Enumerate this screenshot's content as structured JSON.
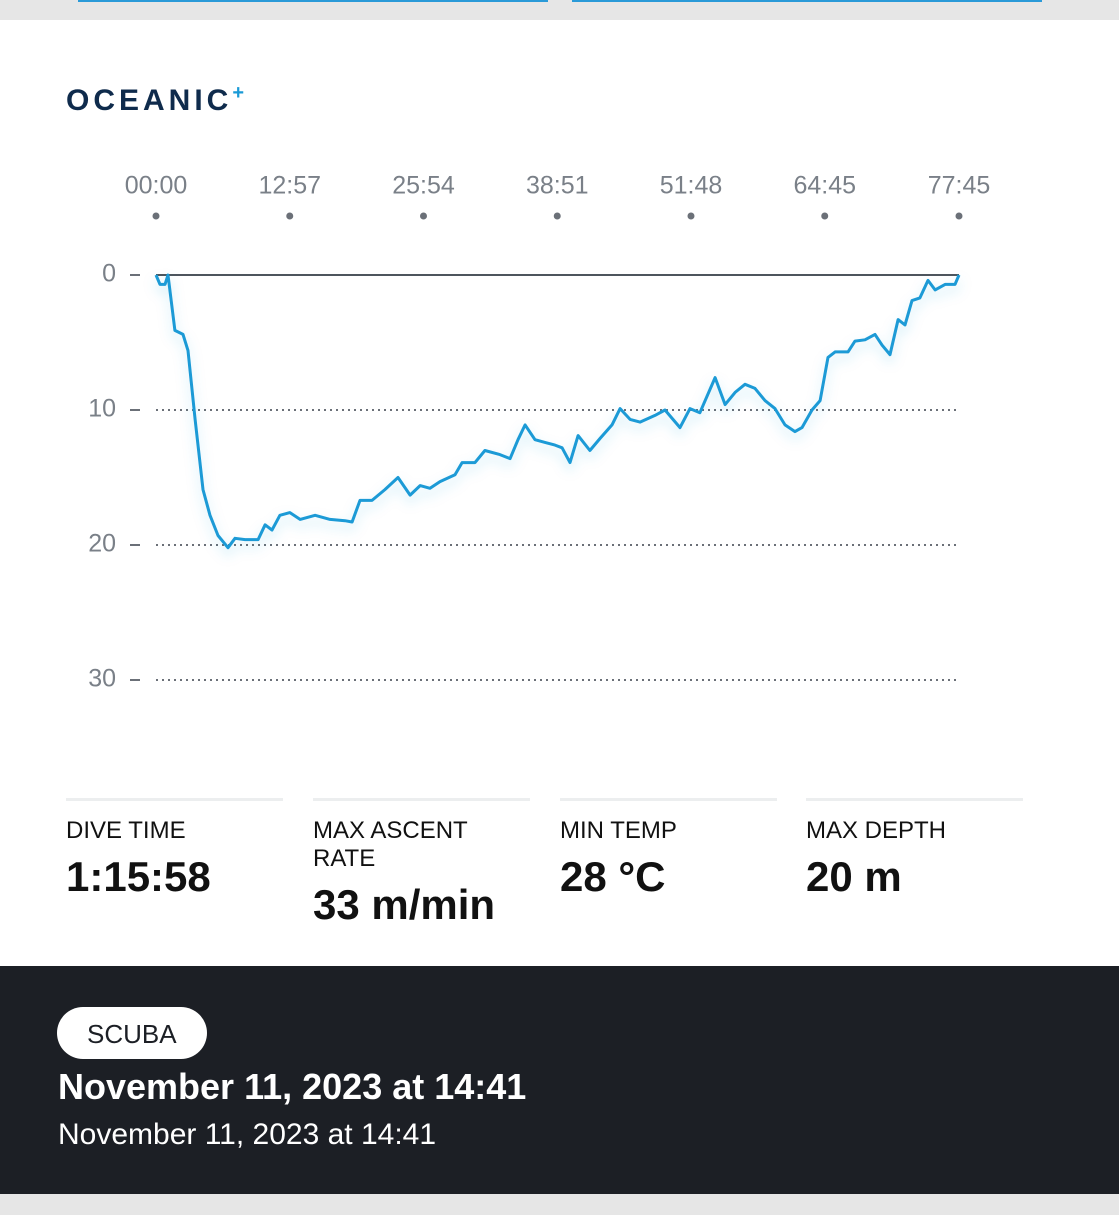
{
  "brand": "OCEANIC",
  "brand_mark": "+",
  "chart_data": {
    "type": "line",
    "x": [
      0,
      23,
      52,
      70,
      110,
      157,
      186,
      227,
      273,
      314,
      360,
      418,
      459,
      517,
      593,
      634,
      674,
      720,
      778,
      837,
      924,
      1011,
      1098,
      1139,
      1185,
      1255,
      1330,
      1406,
      1476,
      1534,
      1592,
      1650,
      1737,
      1778,
      1853,
      1911,
      1998,
      2057,
      2103,
      2144,
      2202,
      2260,
      2318,
      2359,
      2405,
      2452,
      2521,
      2580,
      2649,
      2696,
      2754,
      2812,
      2899,
      2957,
      3044,
      3102,
      3160,
      3248,
      3306,
      3364,
      3422,
      3480,
      3538,
      3596,
      3654,
      3712,
      3753,
      3811,
      3858,
      3904,
      3945,
      4020,
      4061,
      4119,
      4177,
      4218,
      4264,
      4311,
      4351,
      4392,
      4438,
      4485,
      4526,
      4584,
      4642,
      4665
    ],
    "series": [
      {
        "color": "#1a9ad6",
        "values": [
          0,
          0.7,
          0.7,
          0,
          4.1,
          4.4,
          5.6,
          10.7,
          15.9,
          17.8,
          19.3,
          20.2,
          19.5,
          19.6,
          19.6,
          18.5,
          18.9,
          17.8,
          17.6,
          18.1,
          17.8,
          18.1,
          18.2,
          18.3,
          16.7,
          16.7,
          15.9,
          15.0,
          16.3,
          15.6,
          15.8,
          15.3,
          14.8,
          13.9,
          13.9,
          13.0,
          13.3,
          13.6,
          12.2,
          11.1,
          12.2,
          12.4,
          12.6,
          12.8,
          13.9,
          11.9,
          13.0,
          12.1,
          11.1,
          9.9,
          10.7,
          10.9,
          10.4,
          10.0,
          11.3,
          9.9,
          10.2,
          7.6,
          9.6,
          8.7,
          8.1,
          8.4,
          9.3,
          9.9,
          11.1,
          11.6,
          11.3,
          10.0,
          9.3,
          6.1,
          5.7,
          5.7,
          4.9,
          4.8,
          4.4,
          5.2,
          5.9,
          3.3,
          3.7,
          1.9,
          1.7,
          0.4,
          1.1,
          0.7,
          0.7,
          0
        ]
      }
    ],
    "xlim": [
      0,
      4665
    ],
    "xticks": [
      {
        "value": 0,
        "label": "00:00"
      },
      {
        "value": 777,
        "label": "12:57"
      },
      {
        "value": 1554,
        "label": "25:54"
      },
      {
        "value": 2331,
        "label": "38:51"
      },
      {
        "value": 3108,
        "label": "51:48"
      },
      {
        "value": 3885,
        "label": "64:45"
      },
      {
        "value": 4665,
        "label": "77:45"
      }
    ],
    "ylim": [
      0,
      30
    ],
    "yticks": [
      0,
      10,
      20,
      30
    ],
    "y_inverted": true,
    "grid": true
  },
  "stats": [
    {
      "label": "DIVE TIME",
      "value": "1:15:58"
    },
    {
      "label": "MAX ASCENT RATE",
      "value": "33 m/min"
    },
    {
      "label": "MIN TEMP",
      "value": "28 °C"
    },
    {
      "label": "MAX DEPTH",
      "value": "20 m"
    }
  ],
  "footer": {
    "badge": "SCUBA",
    "title": "November 11, 2023 at 14:41",
    "subtitle": "November 11, 2023 at 14:41"
  }
}
